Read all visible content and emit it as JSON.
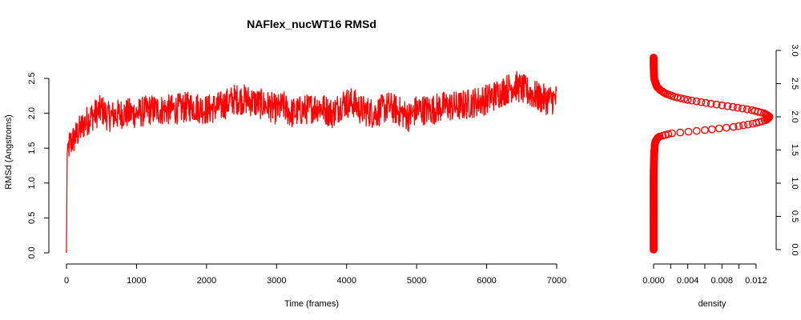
{
  "colors": {
    "series": "#ff0000",
    "axis": "#000000",
    "background": "#ffffff"
  },
  "chart_data": [
    {
      "type": "line",
      "title": "NAFlex_nucWT16 RMSd",
      "xlabel": "Time (frames)",
      "ylabel": "RMSd (Angstroms)",
      "xlim": [
        0,
        7000
      ],
      "ylim": [
        0,
        2.5
      ],
      "xticks": [
        "0",
        "1000",
        "2000",
        "3000",
        "4000",
        "5000",
        "6000",
        "7000"
      ],
      "yticks": [
        "0.0",
        "0.5",
        "1.0",
        "1.5",
        "2.0",
        "2.5"
      ],
      "grid": false,
      "series": [
        {
          "color": "#ff0000",
          "x": [
            0,
            10,
            40,
            80,
            150,
            250,
            350,
            500,
            600,
            800,
            1000,
            1200,
            1500,
            1800,
            2000,
            2200,
            2400,
            2550,
            2700,
            2900,
            3000,
            3100,
            3200,
            3400,
            3600,
            3800,
            3950,
            4100,
            4200,
            4400,
            4600,
            4800,
            4900,
            5000,
            5200,
            5400,
            5600,
            5800,
            6000,
            6200,
            6400,
            6600,
            6800,
            7000
          ],
          "y": [
            0.0,
            1.45,
            1.55,
            1.6,
            1.7,
            1.85,
            1.95,
            2.05,
            1.95,
            2.0,
            2.0,
            2.05,
            2.05,
            2.1,
            2.05,
            2.1,
            2.2,
            2.2,
            2.15,
            2.1,
            2.05,
            2.1,
            2.0,
            2.05,
            2.1,
            2.0,
            2.15,
            2.15,
            2.05,
            2.0,
            2.1,
            2.0,
            1.95,
            2.05,
            2.05,
            2.1,
            2.1,
            2.15,
            2.2,
            2.3,
            2.4,
            2.3,
            2.2,
            2.2
          ]
        }
      ]
    },
    {
      "type": "scatter",
      "xlabel": "density",
      "xlim": [
        0,
        0.0137
      ],
      "ylim": [
        0,
        3.0
      ],
      "xticks": [
        "0.000",
        "0.004",
        "0.008",
        "0.012"
      ],
      "yticks": [
        "0.0",
        "0.5",
        "1.0",
        "1.5",
        "2.0",
        "2.5",
        "3.0"
      ],
      "y_axis_side": "right",
      "grid": false,
      "series": [
        {
          "color": "#ff0000",
          "y": [
            0.0,
            0.2,
            0.4,
            0.6,
            0.8,
            1.0,
            1.2,
            1.3,
            1.4,
            1.5,
            1.6,
            1.65,
            1.7,
            1.75,
            1.8,
            1.85,
            1.9,
            1.95,
            2.0,
            2.05,
            2.1,
            2.15,
            2.2,
            2.25,
            2.3,
            2.35,
            2.4,
            2.45,
            2.5,
            2.55,
            2.6,
            2.7,
            2.8,
            2.9
          ],
          "density": [
            0.0,
            0.0,
            0.0,
            0.0,
            0.0,
            0.0,
            1e-05,
            3e-05,
            5e-05,
            0.0001,
            0.00015,
            0.0003,
            0.0006,
            0.002,
            0.006,
            0.0095,
            0.0118,
            0.0132,
            0.0136,
            0.013,
            0.0115,
            0.0092,
            0.0065,
            0.0042,
            0.0025,
            0.0014,
            0.0008,
            0.0004,
            0.00025,
            0.00012,
            6e-05,
            2e-05,
            0.0,
            0.0
          ]
        }
      ]
    }
  ]
}
